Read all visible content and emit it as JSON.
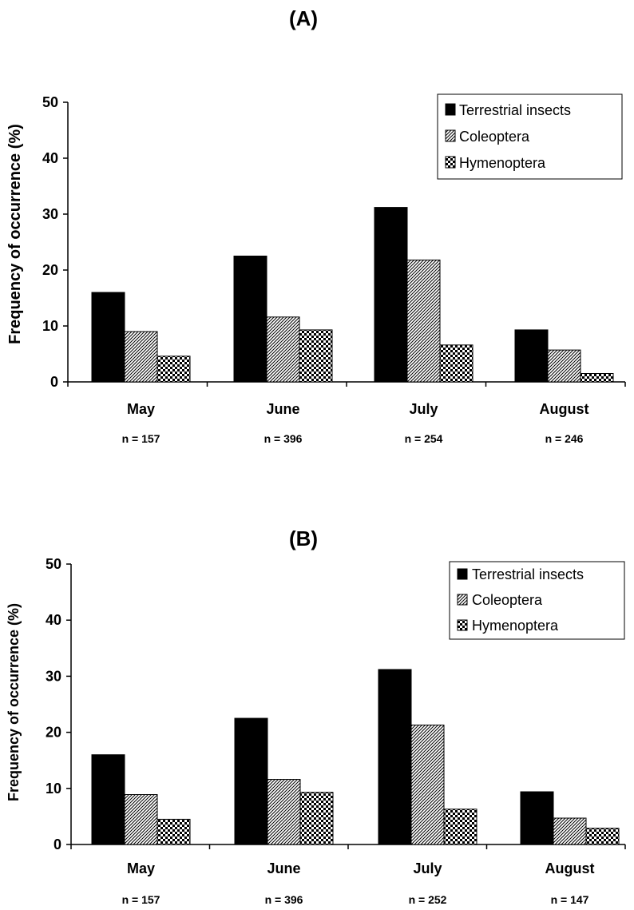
{
  "chart_data": [
    {
      "type": "bar",
      "title": "(A)",
      "ylabel": "Frequency of occurrence (%)",
      "ylim": [
        0,
        50
      ],
      "yticks": [
        "0",
        "10",
        "20",
        "30",
        "40",
        "50"
      ],
      "grid": false,
      "legend_position": "top-right",
      "categories": [
        "May",
        "June",
        "July",
        "August"
      ],
      "sample_sizes": [
        "n = 157",
        "n = 396",
        "n = 254",
        "n = 246"
      ],
      "series": [
        {
          "name": "Terrestrial insects",
          "values": [
            16.0,
            22.5,
            31.2,
            9.3
          ]
        },
        {
          "name": "Coleoptera",
          "values": [
            9.0,
            11.6,
            21.8,
            5.7
          ]
        },
        {
          "name": "Hymenoptera",
          "values": [
            4.6,
            9.3,
            6.6,
            1.5
          ]
        }
      ]
    },
    {
      "type": "bar",
      "title": "(B)",
      "ylabel": "Frequency of occurrence (%)",
      "ylim": [
        0,
        50
      ],
      "yticks": [
        "0",
        "10",
        "20",
        "30",
        "40",
        "50"
      ],
      "grid": false,
      "legend_position": "top-right",
      "categories": [
        "May",
        "June",
        "July",
        "August"
      ],
      "sample_sizes": [
        "n = 157",
        "n = 396",
        "n = 252",
        "n = 147"
      ],
      "series": [
        {
          "name": "Terrestrial insects",
          "values": [
            16.0,
            22.5,
            31.2,
            9.4
          ]
        },
        {
          "name": "Coleoptera",
          "values": [
            8.9,
            11.6,
            21.3,
            4.7
          ]
        },
        {
          "name": "Hymenoptera",
          "values": [
            4.5,
            9.3,
            6.3,
            2.9
          ]
        }
      ]
    }
  ],
  "series_styles": [
    {
      "fill": "#000000",
      "pattern": "solid"
    },
    {
      "fill": "#ffffff",
      "pattern": "diagonal-hatch"
    },
    {
      "fill": "#ffffff",
      "pattern": "checkered"
    }
  ]
}
